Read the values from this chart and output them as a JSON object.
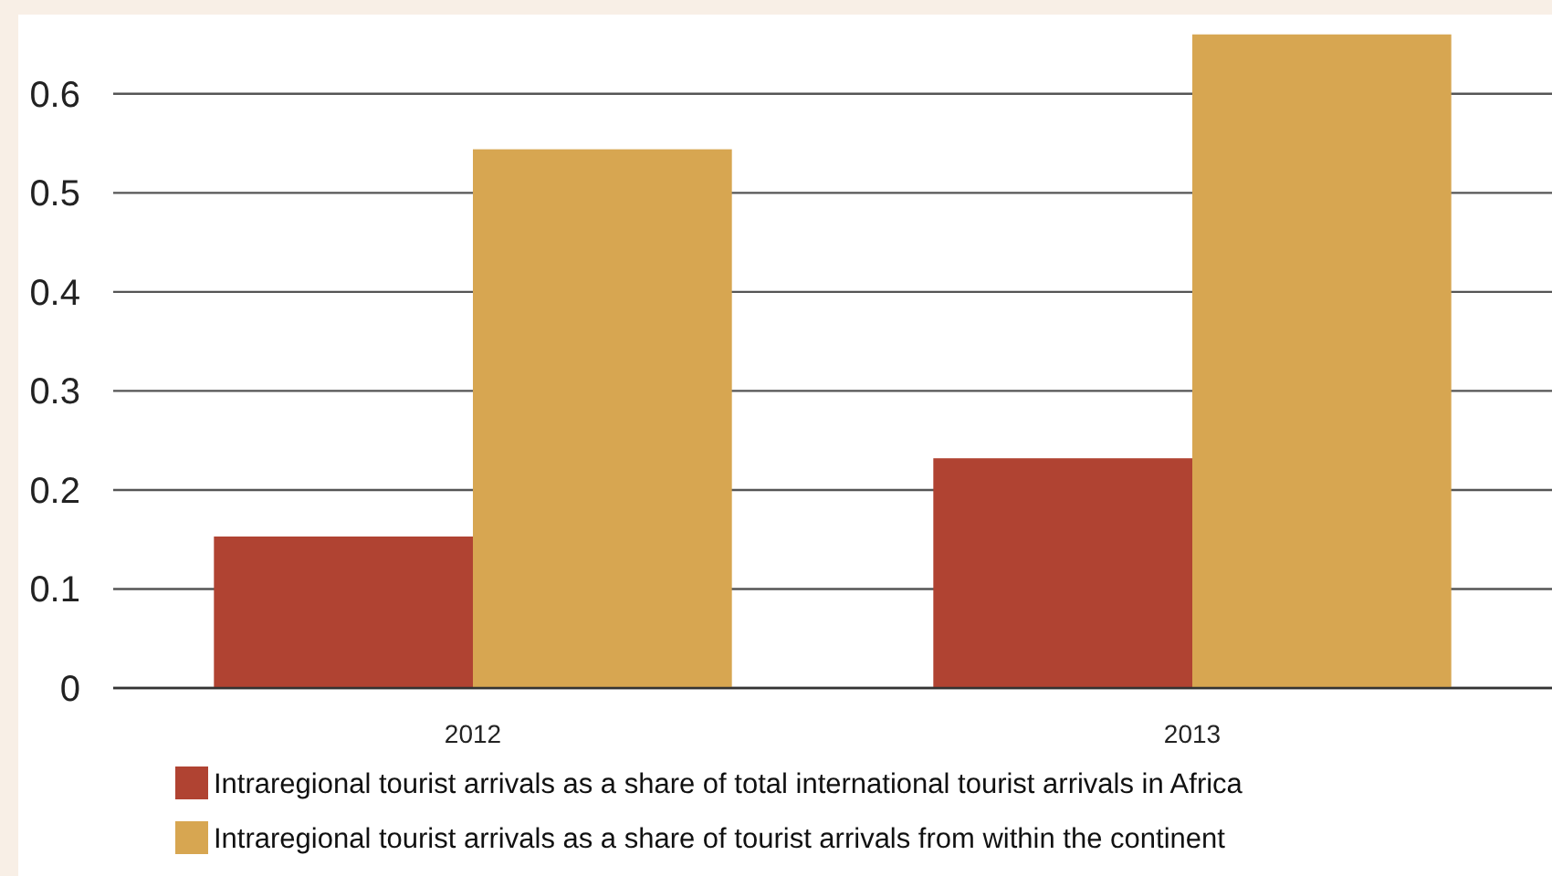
{
  "chart_data": {
    "type": "bar",
    "categories": [
      "2012",
      "2013"
    ],
    "series": [
      {
        "name": "Intraregional tourist arrivals as a share of total international tourist arrivals in Africa",
        "color": "#b04332",
        "values": [
          0.153,
          0.232
        ]
      },
      {
        "name": "Intraregional tourist arrivals as a share of tourist arrivals from within the continent",
        "color": "#d7a651",
        "values": [
          0.544,
          0.66
        ]
      }
    ],
    "ylim": [
      0,
      0.68
    ],
    "yticks": [
      0,
      0.1,
      0.2,
      0.3,
      0.4,
      0.5,
      0.6
    ],
    "grid": "y",
    "legend": "bottom"
  }
}
